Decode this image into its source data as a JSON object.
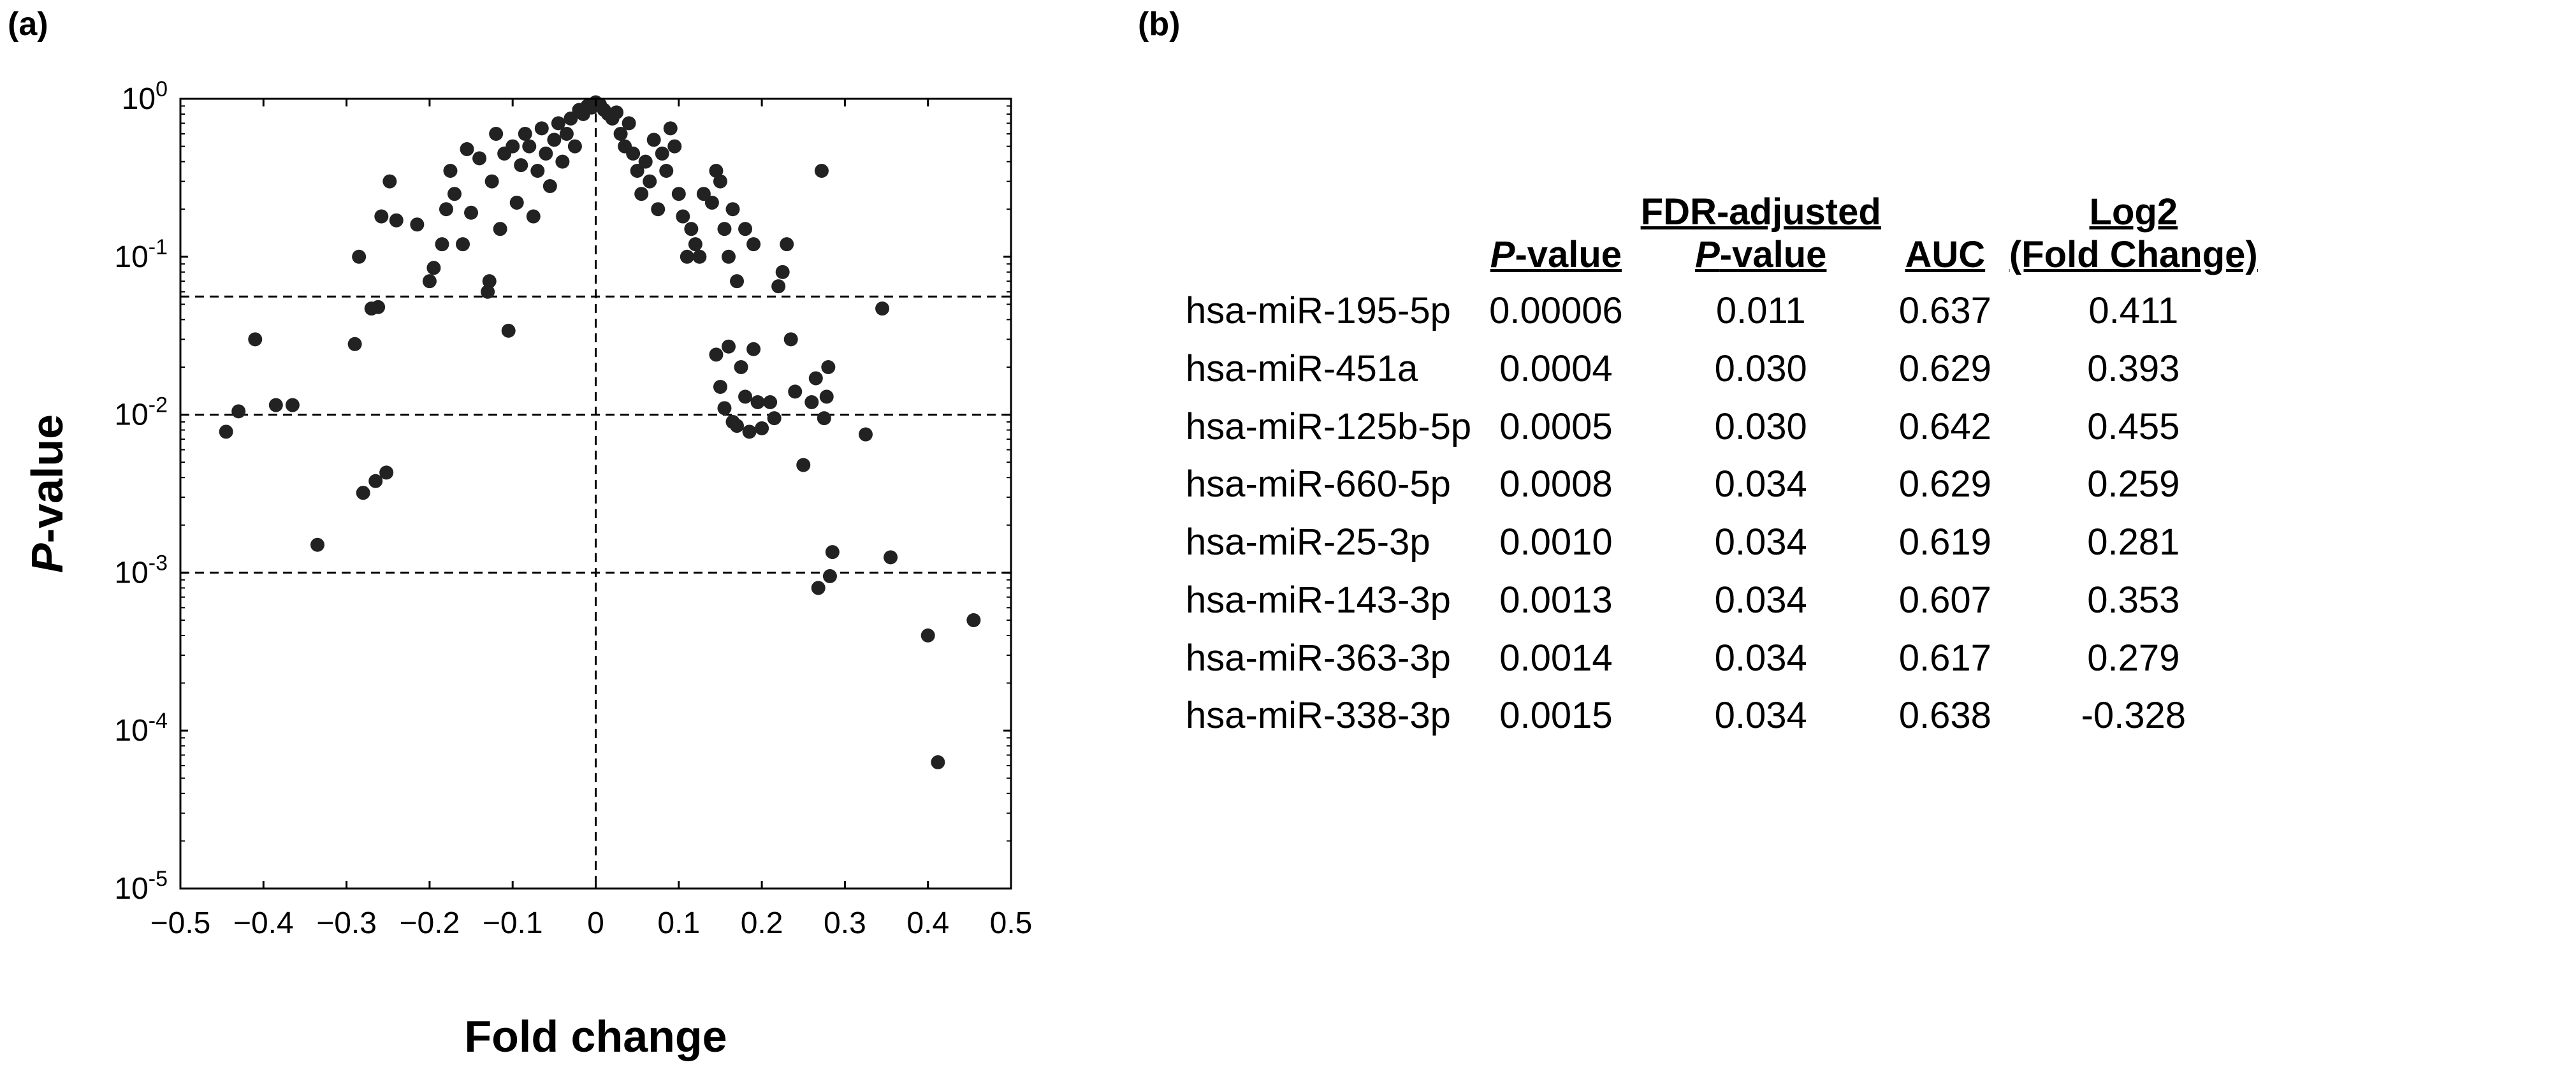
{
  "panel_labels": {
    "a": "(a)",
    "b": "(b)"
  },
  "chart_data": {
    "type": "scatter",
    "title": "",
    "xlabel": "Fold change",
    "ylabel_italic": "P",
    "ylabel_rest": "-value",
    "xlim": [
      -0.5,
      0.5
    ],
    "ylim_log10": [
      -5,
      0
    ],
    "yscale": "log",
    "x_ticks": [
      "−0.5",
      "−0.4",
      "−0.3",
      "−0.2",
      "−0.1",
      "0",
      "0.1",
      "0.2",
      "0.3",
      "0.4",
      "0.5"
    ],
    "x_tick_values": [
      -0.5,
      -0.4,
      -0.3,
      -0.2,
      -0.1,
      0,
      0.1,
      0.2,
      0.3,
      0.4,
      0.5
    ],
    "y_ticks": [
      {
        "base": "10",
        "exp": "0",
        "value": 1
      },
      {
        "base": "10",
        "exp": "-1",
        "value": 0.1
      },
      {
        "base": "10",
        "exp": "-2",
        "value": 0.01
      },
      {
        "base": "10",
        "exp": "-3",
        "value": 0.001
      },
      {
        "base": "10",
        "exp": "-4",
        "value": 0.0001
      },
      {
        "base": "10",
        "exp": "-5",
        "value": 1e-05
      }
    ],
    "reference_lines": {
      "horizontal_p": [
        0.056,
        0.01,
        0.001
      ],
      "vertical_x": [
        0
      ]
    },
    "grid": false,
    "points": [
      [
        -0.445,
        0.0078
      ],
      [
        -0.43,
        0.0105
      ],
      [
        -0.41,
        0.03
      ],
      [
        -0.385,
        0.0115
      ],
      [
        -0.365,
        0.0115
      ],
      [
        -0.335,
        0.0015
      ],
      [
        -0.29,
        0.028
      ],
      [
        -0.285,
        0.1
      ],
      [
        -0.28,
        0.0032
      ],
      [
        -0.27,
        0.047
      ],
      [
        -0.265,
        0.0038
      ],
      [
        -0.262,
        0.048
      ],
      [
        -0.258,
        0.18
      ],
      [
        -0.252,
        0.0043
      ],
      [
        -0.248,
        0.3
      ],
      [
        -0.24,
        0.17
      ],
      [
        -0.215,
        0.16
      ],
      [
        -0.2,
        0.07
      ],
      [
        -0.195,
        0.085
      ],
      [
        -0.185,
        0.12
      ],
      [
        -0.18,
        0.2
      ],
      [
        -0.175,
        0.35
      ],
      [
        -0.17,
        0.25
      ],
      [
        -0.16,
        0.12
      ],
      [
        -0.155,
        0.48
      ],
      [
        -0.15,
        0.19
      ],
      [
        -0.14,
        0.42
      ],
      [
        -0.13,
        0.06
      ],
      [
        -0.128,
        0.07
      ],
      [
        -0.125,
        0.3
      ],
      [
        -0.12,
        0.6
      ],
      [
        -0.115,
        0.15
      ],
      [
        -0.11,
        0.45
      ],
      [
        -0.105,
        0.034
      ],
      [
        -0.1,
        0.5
      ],
      [
        -0.095,
        0.22
      ],
      [
        -0.09,
        0.38
      ],
      [
        -0.085,
        0.6
      ],
      [
        -0.08,
        0.5
      ],
      [
        -0.075,
        0.18
      ],
      [
        -0.07,
        0.35
      ],
      [
        -0.065,
        0.65
      ],
      [
        -0.06,
        0.45
      ],
      [
        -0.055,
        0.28
      ],
      [
        -0.05,
        0.55
      ],
      [
        -0.045,
        0.7
      ],
      [
        -0.04,
        0.4
      ],
      [
        -0.035,
        0.6
      ],
      [
        -0.03,
        0.75
      ],
      [
        -0.025,
        0.5
      ],
      [
        -0.02,
        0.85
      ],
      [
        -0.015,
        0.8
      ],
      [
        -0.01,
        0.9
      ],
      [
        -0.005,
        0.88
      ],
      [
        0.0,
        0.95
      ],
      [
        0.005,
        0.92
      ],
      [
        0.01,
        0.85
      ],
      [
        0.015,
        0.8
      ],
      [
        0.02,
        0.75
      ],
      [
        0.025,
        0.82
      ],
      [
        0.03,
        0.6
      ],
      [
        0.035,
        0.5
      ],
      [
        0.04,
        0.7
      ],
      [
        0.045,
        0.45
      ],
      [
        0.05,
        0.35
      ],
      [
        0.055,
        0.25
      ],
      [
        0.06,
        0.4
      ],
      [
        0.065,
        0.3
      ],
      [
        0.07,
        0.55
      ],
      [
        0.075,
        0.2
      ],
      [
        0.08,
        0.45
      ],
      [
        0.085,
        0.35
      ],
      [
        0.09,
        0.65
      ],
      [
        0.095,
        0.5
      ],
      [
        0.1,
        0.25
      ],
      [
        0.105,
        0.18
      ],
      [
        0.11,
        0.1
      ],
      [
        0.115,
        0.15
      ],
      [
        0.12,
        0.12
      ],
      [
        0.125,
        0.1
      ],
      [
        0.13,
        0.25
      ],
      [
        0.14,
        0.22
      ],
      [
        0.145,
        0.35
      ],
      [
        0.15,
        0.3
      ],
      [
        0.155,
        0.15
      ],
      [
        0.16,
        0.1
      ],
      [
        0.165,
        0.2
      ],
      [
        0.17,
        0.07
      ],
      [
        0.18,
        0.15
      ],
      [
        0.19,
        0.12
      ],
      [
        0.145,
        0.024
      ],
      [
        0.15,
        0.015
      ],
      [
        0.155,
        0.011
      ],
      [
        0.16,
        0.027
      ],
      [
        0.165,
        0.009
      ],
      [
        0.17,
        0.0085
      ],
      [
        0.175,
        0.02
      ],
      [
        0.18,
        0.013
      ],
      [
        0.185,
        0.0078
      ],
      [
        0.19,
        0.026
      ],
      [
        0.195,
        0.012
      ],
      [
        0.2,
        0.0082
      ],
      [
        0.21,
        0.012
      ],
      [
        0.215,
        0.0095
      ],
      [
        0.22,
        0.065
      ],
      [
        0.225,
        0.08
      ],
      [
        0.23,
        0.12
      ],
      [
        0.235,
        0.03
      ],
      [
        0.24,
        0.014
      ],
      [
        0.25,
        0.0048
      ],
      [
        0.26,
        0.012
      ],
      [
        0.265,
        0.017
      ],
      [
        0.268,
        0.0008
      ],
      [
        0.272,
        0.35
      ],
      [
        0.275,
        0.0095
      ],
      [
        0.278,
        0.013
      ],
      [
        0.28,
        0.02
      ],
      [
        0.282,
        0.00095
      ],
      [
        0.285,
        0.00135
      ],
      [
        0.325,
        0.0075
      ],
      [
        0.345,
        0.047
      ],
      [
        0.355,
        0.00125
      ],
      [
        0.4,
        0.0004
      ],
      [
        0.412,
        6.3e-05
      ],
      [
        0.455,
        0.0005
      ]
    ]
  },
  "table": {
    "headers": {
      "pvalue": {
        "italic": "P",
        "rest": "-value"
      },
      "fdr": {
        "line1": "FDR-adjusted",
        "italic": "P",
        "rest": "-value"
      },
      "auc": "AUC",
      "log2": {
        "line1": "Log2",
        "line2": "(Fold Change)"
      }
    },
    "rows": [
      {
        "name": "hsa-miR-195-5p",
        "p": "0.00006",
        "fdr": "0.011",
        "auc": "0.637",
        "log2fc": "0.411"
      },
      {
        "name": "hsa-miR-451a",
        "p": "0.0004",
        "fdr": "0.030",
        "auc": "0.629",
        "log2fc": "0.393"
      },
      {
        "name": "hsa-miR-125b-5p",
        "p": "0.0005",
        "fdr": "0.030",
        "auc": "0.642",
        "log2fc": "0.455"
      },
      {
        "name": "hsa-miR-660-5p",
        "p": "0.0008",
        "fdr": "0.034",
        "auc": "0.629",
        "log2fc": "0.259"
      },
      {
        "name": "hsa-miR-25-3p",
        "p": "0.0010",
        "fdr": "0.034",
        "auc": "0.619",
        "log2fc": "0.281"
      },
      {
        "name": "hsa-miR-143-3p",
        "p": "0.0013",
        "fdr": "0.034",
        "auc": "0.607",
        "log2fc": "0.353"
      },
      {
        "name": "hsa-miR-363-3p",
        "p": "0.0014",
        "fdr": "0.034",
        "auc": "0.617",
        "log2fc": "0.279"
      },
      {
        "name": "hsa-miR-338-3p",
        "p": "0.0015",
        "fdr": "0.034",
        "auc": "0.638",
        "log2fc": "-0.328"
      }
    ]
  }
}
